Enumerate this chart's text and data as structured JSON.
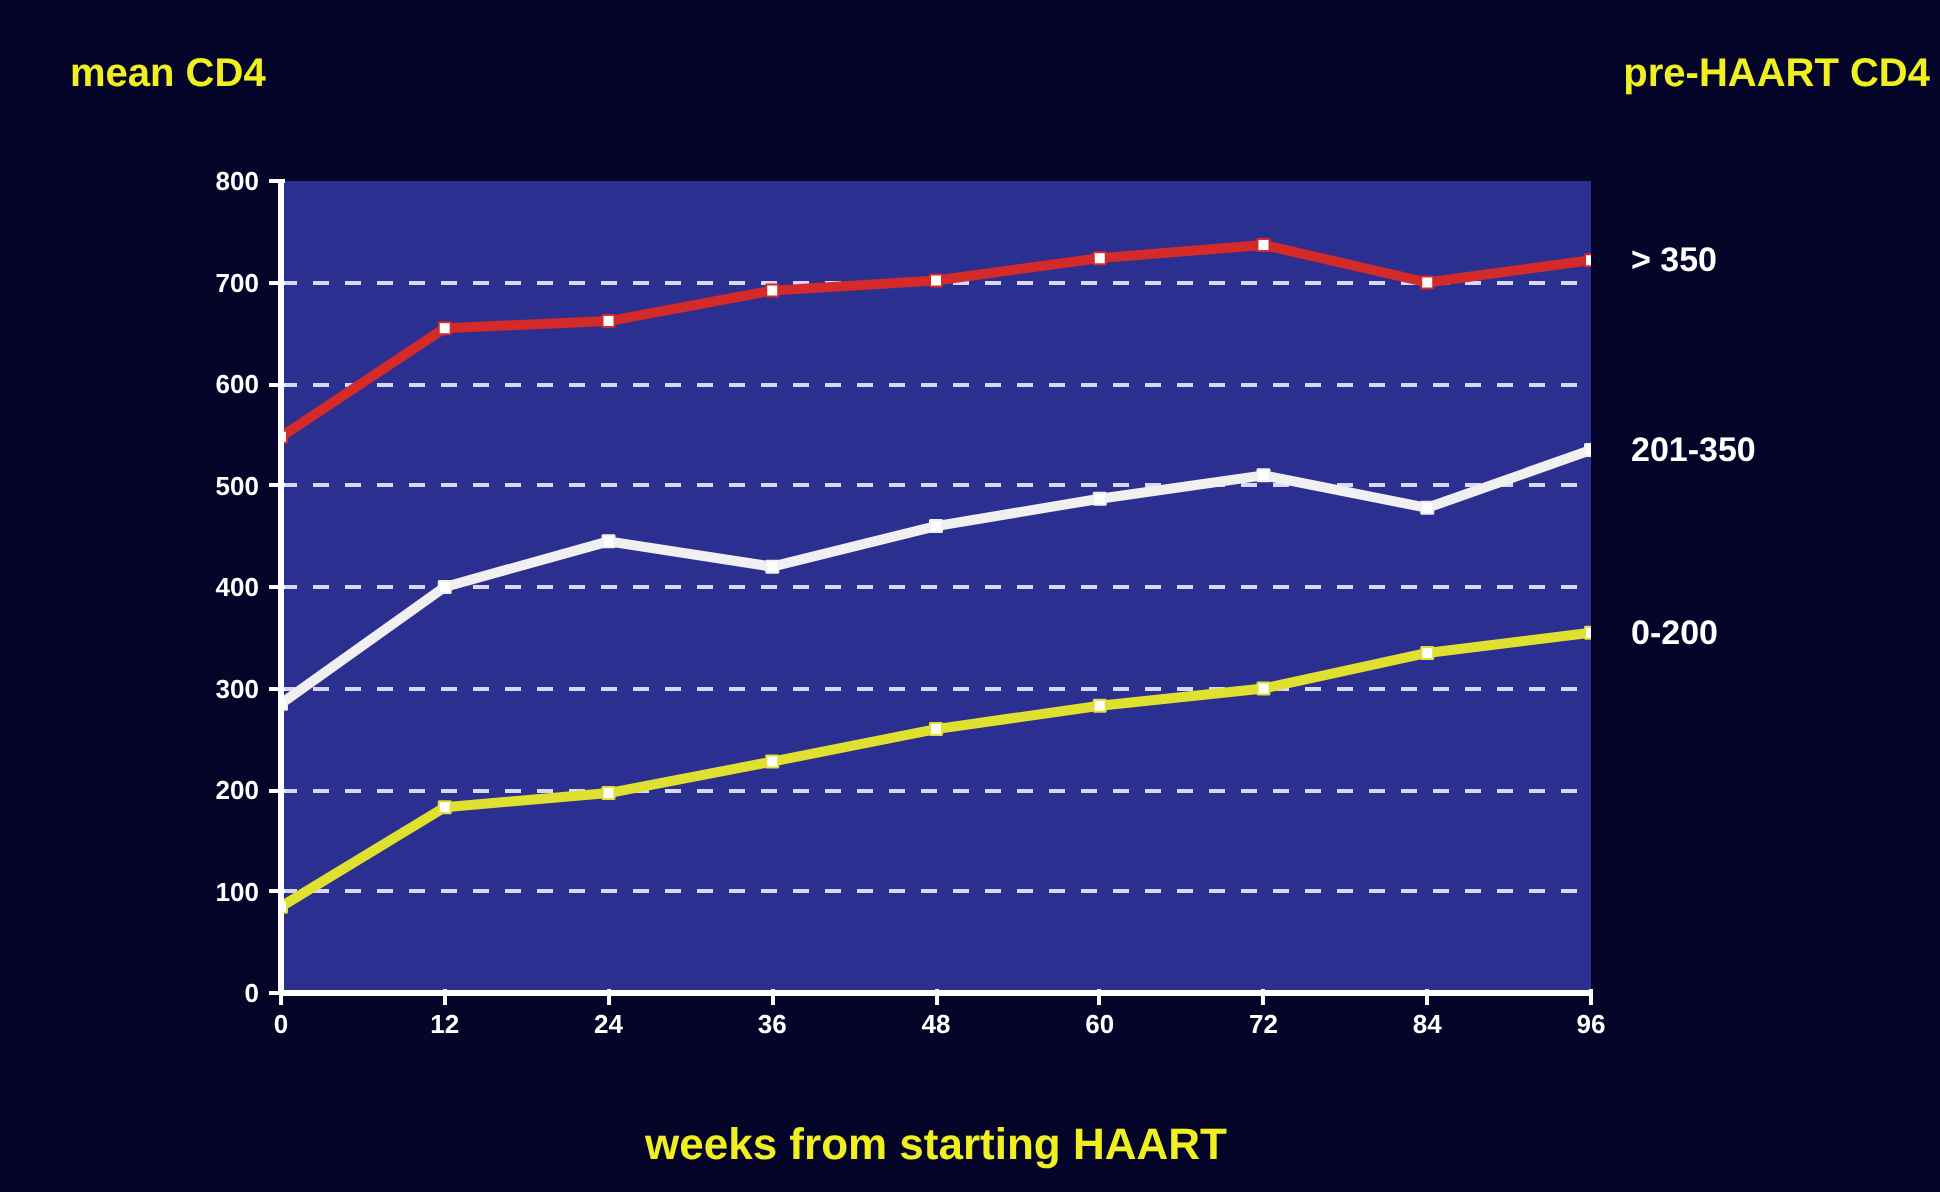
{
  "chart_data": {
    "type": "line",
    "ylabel": "mean CD4",
    "legend_title": "pre-HAART CD4",
    "xlabel": "weeks from starting HAART",
    "x": [
      0,
      12,
      24,
      36,
      48,
      60,
      72,
      84,
      96
    ],
    "xlim": [
      0,
      96
    ],
    "xticks": [
      0,
      12,
      24,
      36,
      48,
      60,
      72,
      84,
      96
    ],
    "ylim": [
      0,
      800
    ],
    "yticks": [
      0,
      100,
      200,
      300,
      400,
      500,
      600,
      700,
      800
    ],
    "grid": "y",
    "marker": "square",
    "series": [
      {
        "name": "> 350",
        "color": "#d42a2a",
        "values": [
          548,
          655,
          662,
          692,
          702,
          724,
          737,
          700,
          722
        ]
      },
      {
        "name": "201-350",
        "color": "#f0f0f0",
        "values": [
          285,
          400,
          445,
          420,
          460,
          487,
          510,
          478,
          535
        ]
      },
      {
        "name": "0-200",
        "color": "#e0e030",
        "values": [
          85,
          183,
          197,
          228,
          260,
          283,
          300,
          335,
          355
        ]
      }
    ]
  }
}
